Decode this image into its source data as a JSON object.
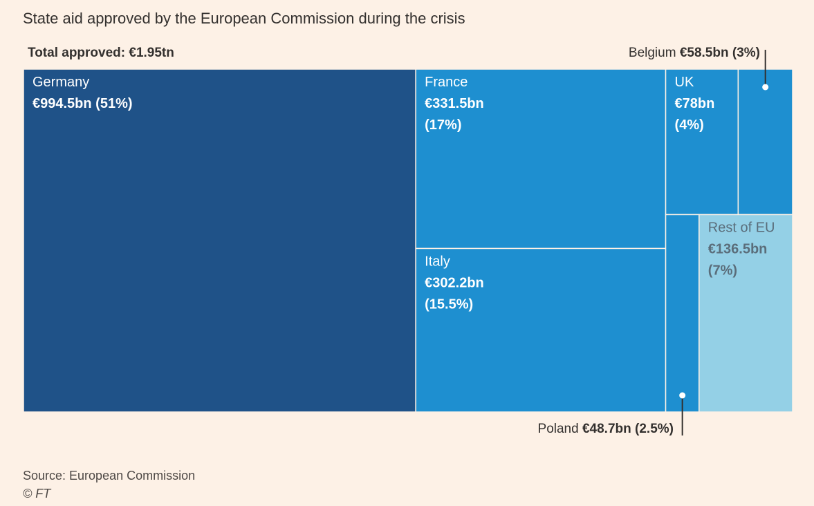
{
  "chart_data": {
    "type": "treemap",
    "title": "State aid approved by the European Commission during the crisis",
    "total_label": "Total approved:",
    "total_value": "€1.95tn",
    "unit": "€bn",
    "items": [
      {
        "name": "Germany",
        "value": 994.5,
        "value_label": "€994.5bn",
        "share_label": "(51%)",
        "share": 51,
        "color": "#1f5288"
      },
      {
        "name": "France",
        "value": 331.5,
        "value_label": "€331.5bn",
        "share_label": "(17%)",
        "share": 17,
        "color": "#1e8fd0"
      },
      {
        "name": "Italy",
        "value": 302.2,
        "value_label": "€302.2bn",
        "share_label": "(15.5%)",
        "share": 15.5,
        "color": "#1e8fd0"
      },
      {
        "name": "UK",
        "value": 78,
        "value_label": "€78bn",
        "share_label": "(4%)",
        "share": 4,
        "color": "#1e8fd0"
      },
      {
        "name": "Belgium",
        "value": 58.5,
        "value_label": "€58.5bn",
        "share_label": "(3%)",
        "share": 3,
        "color": "#1e8fd0"
      },
      {
        "name": "Poland",
        "value": 48.7,
        "value_label": "€48.7bn",
        "share_label": "(2.5%)",
        "share": 2.5,
        "color": "#1e8fd0"
      },
      {
        "name": "Rest of EU",
        "value": 136.5,
        "value_label": "€136.5bn",
        "share_label": "(7%)",
        "share": 7,
        "color": "#94d0e6"
      }
    ],
    "source": "Source: European Commission",
    "credit": "© FT"
  }
}
